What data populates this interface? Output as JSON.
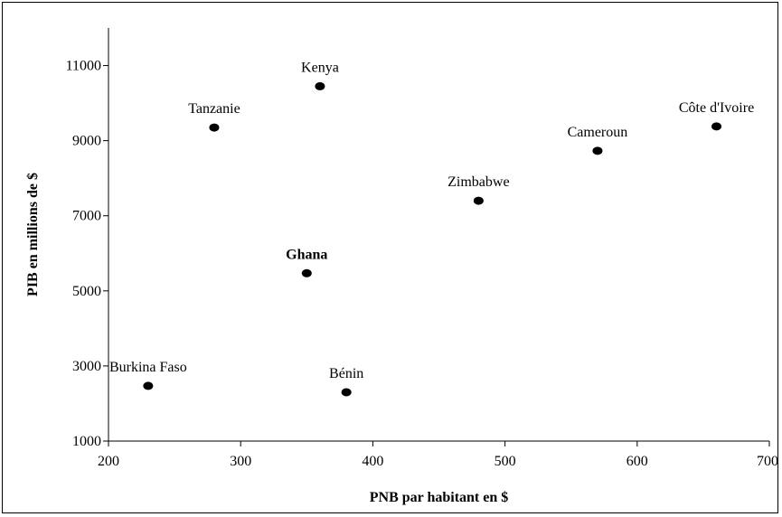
{
  "chart_data": {
    "type": "scatter",
    "title": "",
    "xlabel": "PNB par habitant en $",
    "ylabel": "PIB en millions de $",
    "xlim": [
      200,
      700
    ],
    "ylim": [
      1000,
      12000
    ],
    "xticks": [
      200,
      300,
      400,
      500,
      600,
      700
    ],
    "yticks": [
      1000,
      3000,
      5000,
      7000,
      9000,
      11000
    ],
    "grid": false,
    "legend": "none",
    "marker_color": "#000000",
    "series": [
      {
        "points": [
          {
            "label": "Kenya",
            "x": 360,
            "y": 10450
          },
          {
            "label": "Tanzanie",
            "x": 280,
            "y": 9350
          },
          {
            "label": "Côte d'Ivoire",
            "x": 660,
            "y": 9380
          },
          {
            "label": "Cameroun",
            "x": 570,
            "y": 8730
          },
          {
            "label": "Zimbabwe",
            "x": 480,
            "y": 7400
          },
          {
            "label": "Ghana",
            "x": 350,
            "y": 5470,
            "bold": true
          },
          {
            "label": "Burkina Faso",
            "x": 230,
            "y": 2470
          },
          {
            "label": "Bénin",
            "x": 380,
            "y": 2300
          }
        ]
      }
    ]
  }
}
